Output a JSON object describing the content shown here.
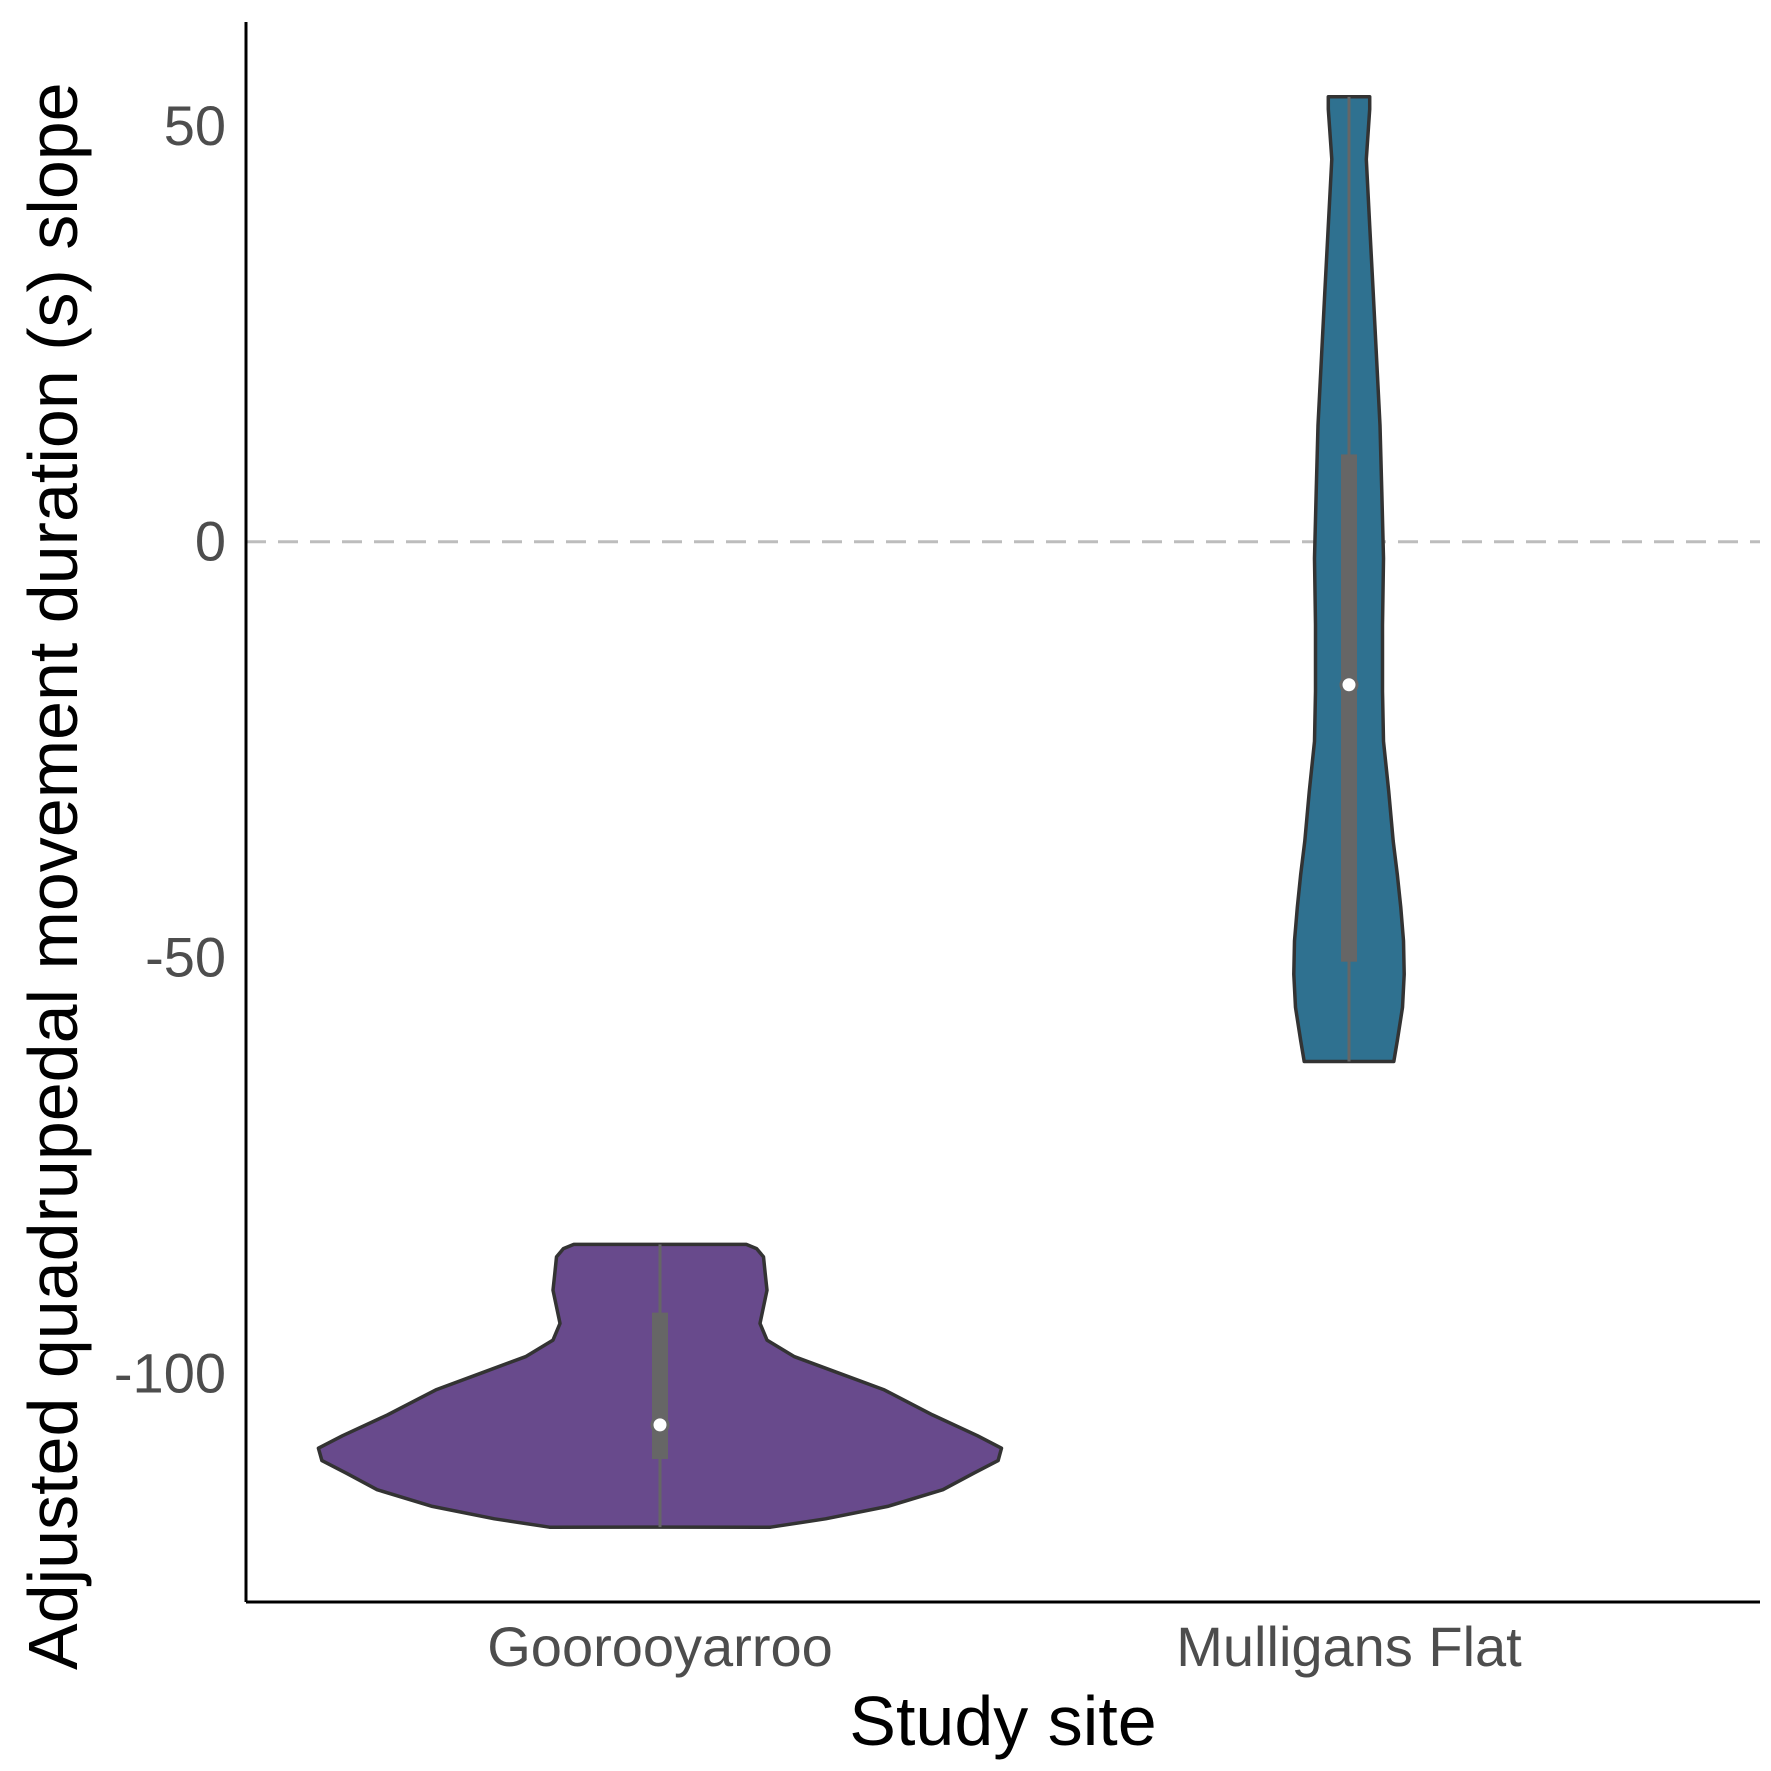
{
  "chart_data": {
    "type": "violin",
    "title": "",
    "xlabel": "Study site",
    "ylabel": "Adjusted quadrupedal movement duration (s) slope",
    "categories": [
      "Goorooyarroo",
      "Mulligans Flat"
    ],
    "ylim": [
      -127.5,
      62.5
    ],
    "yticks": [
      50,
      0,
      -50,
      -100
    ],
    "ytick_labels": [
      "50",
      "0",
      "-50",
      "-100"
    ],
    "reference_line": {
      "y": 0,
      "style": "dashed",
      "color": "#bdbdbd"
    },
    "violins": [
      {
        "category": "Goorooyarroo",
        "fill": "#684a8c",
        "min": -118.5,
        "max": -84.5,
        "q1": -110.3,
        "q3": -92.7,
        "median": -106.2,
        "density": [
          [
            -118.5,
            0.32
          ],
          [
            -117.5,
            0.48
          ],
          [
            -116,
            0.66
          ],
          [
            -114,
            0.82
          ],
          [
            -112,
            0.91
          ],
          [
            -110.5,
            0.98
          ],
          [
            -109,
            0.99
          ],
          [
            -107.5,
            0.92
          ],
          [
            -105,
            0.79
          ],
          [
            -102,
            0.65
          ],
          [
            -100,
            0.52
          ],
          [
            -98,
            0.39
          ],
          [
            -96,
            0.31
          ],
          [
            -94,
            0.29
          ],
          [
            -92,
            0.3
          ],
          [
            -90,
            0.31
          ],
          [
            -88,
            0.305
          ],
          [
            -86,
            0.3
          ],
          [
            -85,
            0.28
          ],
          [
            -84.5,
            0.25
          ]
        ]
      },
      {
        "category": "Mulligans Flat",
        "fill": "#2f7190",
        "min": -62.5,
        "max": 53.5,
        "q1": -50.5,
        "q3": 10.5,
        "median": -17.2,
        "density": [
          [
            -62.5,
            0.13
          ],
          [
            -60,
            0.14
          ],
          [
            -56,
            0.155
          ],
          [
            -52,
            0.16
          ],
          [
            -48,
            0.158
          ],
          [
            -44,
            0.15
          ],
          [
            -40,
            0.14
          ],
          [
            -36,
            0.128
          ],
          [
            -30,
            0.115
          ],
          [
            -24,
            0.1
          ],
          [
            -18,
            0.097
          ],
          [
            -10,
            0.097
          ],
          [
            -2,
            0.1
          ],
          [
            6,
            0.095
          ],
          [
            14,
            0.09
          ],
          [
            22,
            0.08
          ],
          [
            30,
            0.07
          ],
          [
            38,
            0.06
          ],
          [
            46,
            0.05
          ],
          [
            52,
            0.06
          ],
          [
            53.5,
            0.06
          ]
        ]
      }
    ]
  }
}
